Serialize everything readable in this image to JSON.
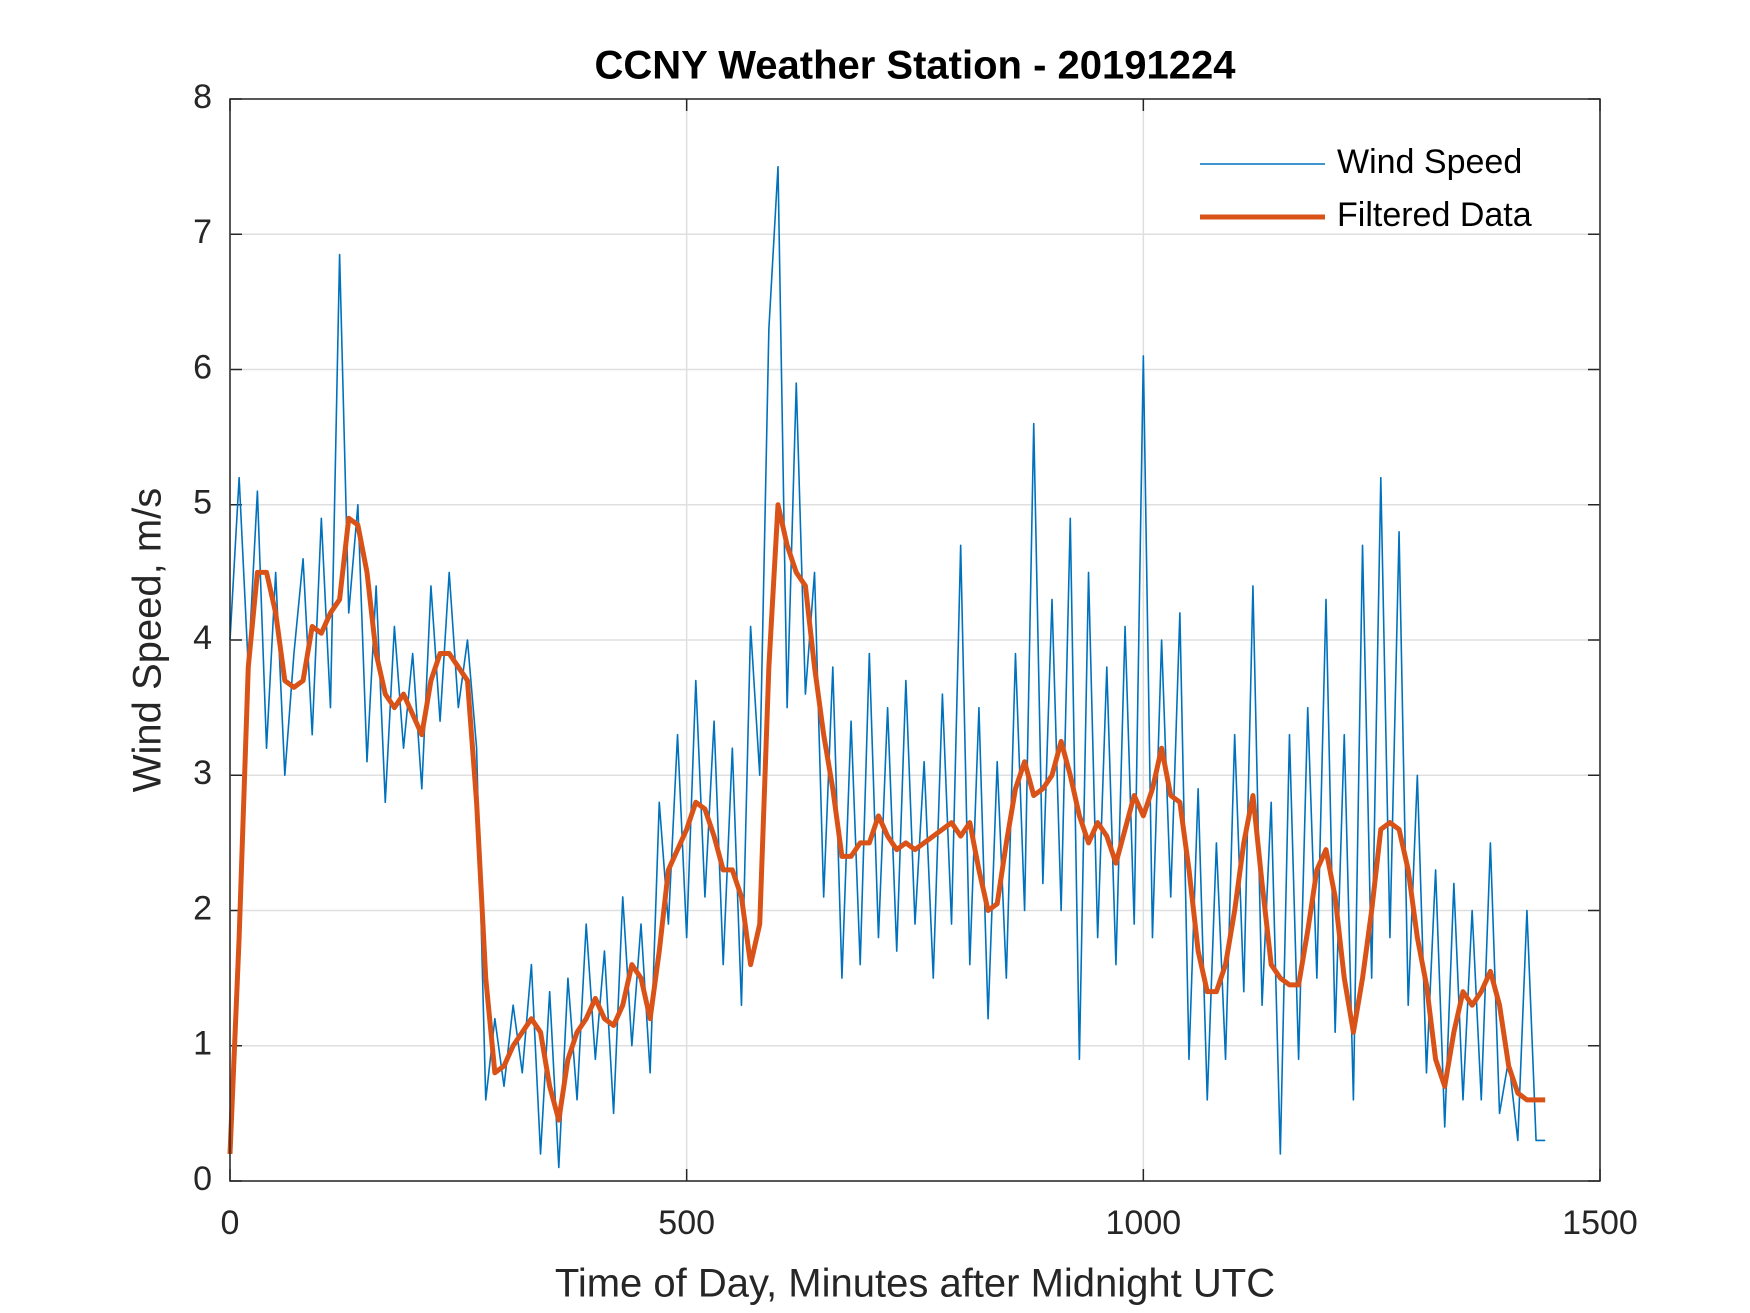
{
  "chart_data": {
    "type": "line",
    "title": "CCNY Weather Station - 20191224",
    "xlabel": "Time of Day, Minutes after Midnight UTC",
    "ylabel": "Wind Speed, m/s",
    "xlim": [
      0,
      1500
    ],
    "ylim": [
      0,
      8
    ],
    "xticks": [
      0,
      500,
      1000,
      1500
    ],
    "yticks": [
      0,
      1,
      2,
      3,
      4,
      5,
      6,
      7,
      8
    ],
    "grid": true,
    "legend": "northeast",
    "x": [
      0,
      10,
      20,
      30,
      40,
      50,
      60,
      70,
      80,
      90,
      100,
      110,
      120,
      130,
      140,
      150,
      160,
      170,
      180,
      190,
      200,
      210,
      220,
      230,
      240,
      250,
      260,
      270,
      280,
      290,
      300,
      310,
      320,
      330,
      340,
      350,
      360,
      370,
      380,
      390,
      400,
      410,
      420,
      430,
      440,
      450,
      460,
      470,
      480,
      490,
      500,
      510,
      520,
      530,
      540,
      550,
      560,
      570,
      580,
      590,
      600,
      610,
      620,
      630,
      640,
      650,
      660,
      670,
      680,
      690,
      700,
      710,
      720,
      730,
      740,
      750,
      760,
      770,
      780,
      790,
      800,
      810,
      820,
      830,
      840,
      850,
      860,
      870,
      880,
      890,
      900,
      910,
      920,
      930,
      940,
      950,
      960,
      970,
      980,
      990,
      1000,
      1010,
      1020,
      1030,
      1040,
      1050,
      1060,
      1070,
      1080,
      1090,
      1100,
      1110,
      1120,
      1130,
      1140,
      1150,
      1160,
      1170,
      1180,
      1190,
      1200,
      1210,
      1220,
      1230,
      1240,
      1250,
      1260,
      1270,
      1280,
      1290,
      1300,
      1310,
      1320,
      1330,
      1340,
      1350,
      1360,
      1370,
      1380,
      1390,
      1400,
      1410,
      1420,
      1430,
      1440
    ],
    "series": [
      {
        "name": "Wind Speed",
        "color": "#0072BD",
        "values": [
          4.0,
          5.2,
          3.8,
          5.1,
          3.2,
          4.5,
          3.0,
          3.9,
          4.6,
          3.3,
          4.9,
          3.5,
          6.85,
          4.2,
          5.0,
          3.1,
          4.4,
          2.8,
          4.1,
          3.2,
          3.9,
          2.9,
          4.4,
          3.4,
          4.5,
          3.5,
          4.0,
          3.2,
          0.6,
          1.2,
          0.7,
          1.3,
          0.8,
          1.6,
          0.2,
          1.4,
          0.1,
          1.5,
          0.6,
          1.9,
          0.9,
          1.7,
          0.5,
          2.1,
          1.0,
          1.9,
          0.8,
          2.8,
          1.9,
          3.3,
          1.8,
          3.7,
          2.1,
          3.4,
          1.6,
          3.2,
          1.3,
          4.1,
          3.0,
          6.3,
          7.5,
          3.5,
          5.9,
          3.6,
          4.5,
          2.1,
          3.8,
          1.5,
          3.4,
          1.6,
          3.9,
          1.8,
          3.5,
          1.7,
          3.7,
          1.9,
          3.1,
          1.5,
          3.6,
          1.9,
          4.7,
          1.6,
          3.5,
          1.2,
          3.1,
          1.5,
          3.9,
          2.0,
          5.6,
          2.2,
          4.3,
          2.0,
          4.9,
          0.9,
          4.5,
          1.8,
          3.8,
          1.6,
          4.1,
          1.9,
          6.1,
          1.8,
          4.0,
          2.1,
          4.2,
          0.9,
          2.9,
          0.6,
          2.5,
          0.9,
          3.3,
          1.4,
          4.4,
          1.3,
          2.8,
          0.2,
          3.3,
          0.9,
          3.5,
          1.5,
          4.3,
          1.1,
          3.3,
          0.6,
          4.7,
          1.5,
          5.2,
          1.8,
          4.8,
          1.3,
          3.0,
          0.8,
          2.3,
          0.4,
          2.2,
          0.6,
          2.0,
          0.6,
          2.5,
          0.5,
          0.9,
          0.3,
          2.0,
          0.3,
          0.3
        ]
      },
      {
        "name": "Filtered Data",
        "color": "#D95319",
        "values": [
          0.2,
          1.8,
          3.8,
          4.5,
          4.5,
          4.2,
          3.7,
          3.65,
          3.7,
          4.1,
          4.05,
          4.2,
          4.3,
          4.9,
          4.85,
          4.5,
          3.9,
          3.6,
          3.5,
          3.6,
          3.45,
          3.3,
          3.7,
          3.9,
          3.9,
          3.8,
          3.7,
          2.8,
          1.5,
          0.8,
          0.85,
          1.0,
          1.1,
          1.2,
          1.1,
          0.7,
          0.45,
          0.9,
          1.1,
          1.2,
          1.35,
          1.2,
          1.15,
          1.3,
          1.6,
          1.5,
          1.2,
          1.7,
          2.3,
          2.45,
          2.6,
          2.8,
          2.75,
          2.55,
          2.3,
          2.3,
          2.1,
          1.6,
          1.9,
          3.8,
          5.0,
          4.7,
          4.5,
          4.4,
          3.8,
          3.3,
          2.9,
          2.4,
          2.4,
          2.5,
          2.5,
          2.7,
          2.55,
          2.45,
          2.5,
          2.45,
          2.5,
          2.55,
          2.6,
          2.65,
          2.55,
          2.65,
          2.3,
          2.0,
          2.05,
          2.5,
          2.9,
          3.1,
          2.85,
          2.9,
          3.0,
          3.25,
          3.0,
          2.7,
          2.5,
          2.65,
          2.55,
          2.35,
          2.6,
          2.85,
          2.7,
          2.9,
          3.2,
          2.85,
          2.8,
          2.3,
          1.7,
          1.4,
          1.4,
          1.6,
          2.0,
          2.5,
          2.85,
          2.2,
          1.6,
          1.5,
          1.45,
          1.45,
          1.85,
          2.3,
          2.45,
          2.1,
          1.5,
          1.1,
          1.5,
          2.0,
          2.6,
          2.65,
          2.6,
          2.3,
          1.8,
          1.45,
          0.9,
          0.7,
          1.1,
          1.4,
          1.3,
          1.4,
          1.55,
          1.3,
          0.85,
          0.65,
          0.6,
          0.6,
          0.6
        ]
      }
    ]
  }
}
